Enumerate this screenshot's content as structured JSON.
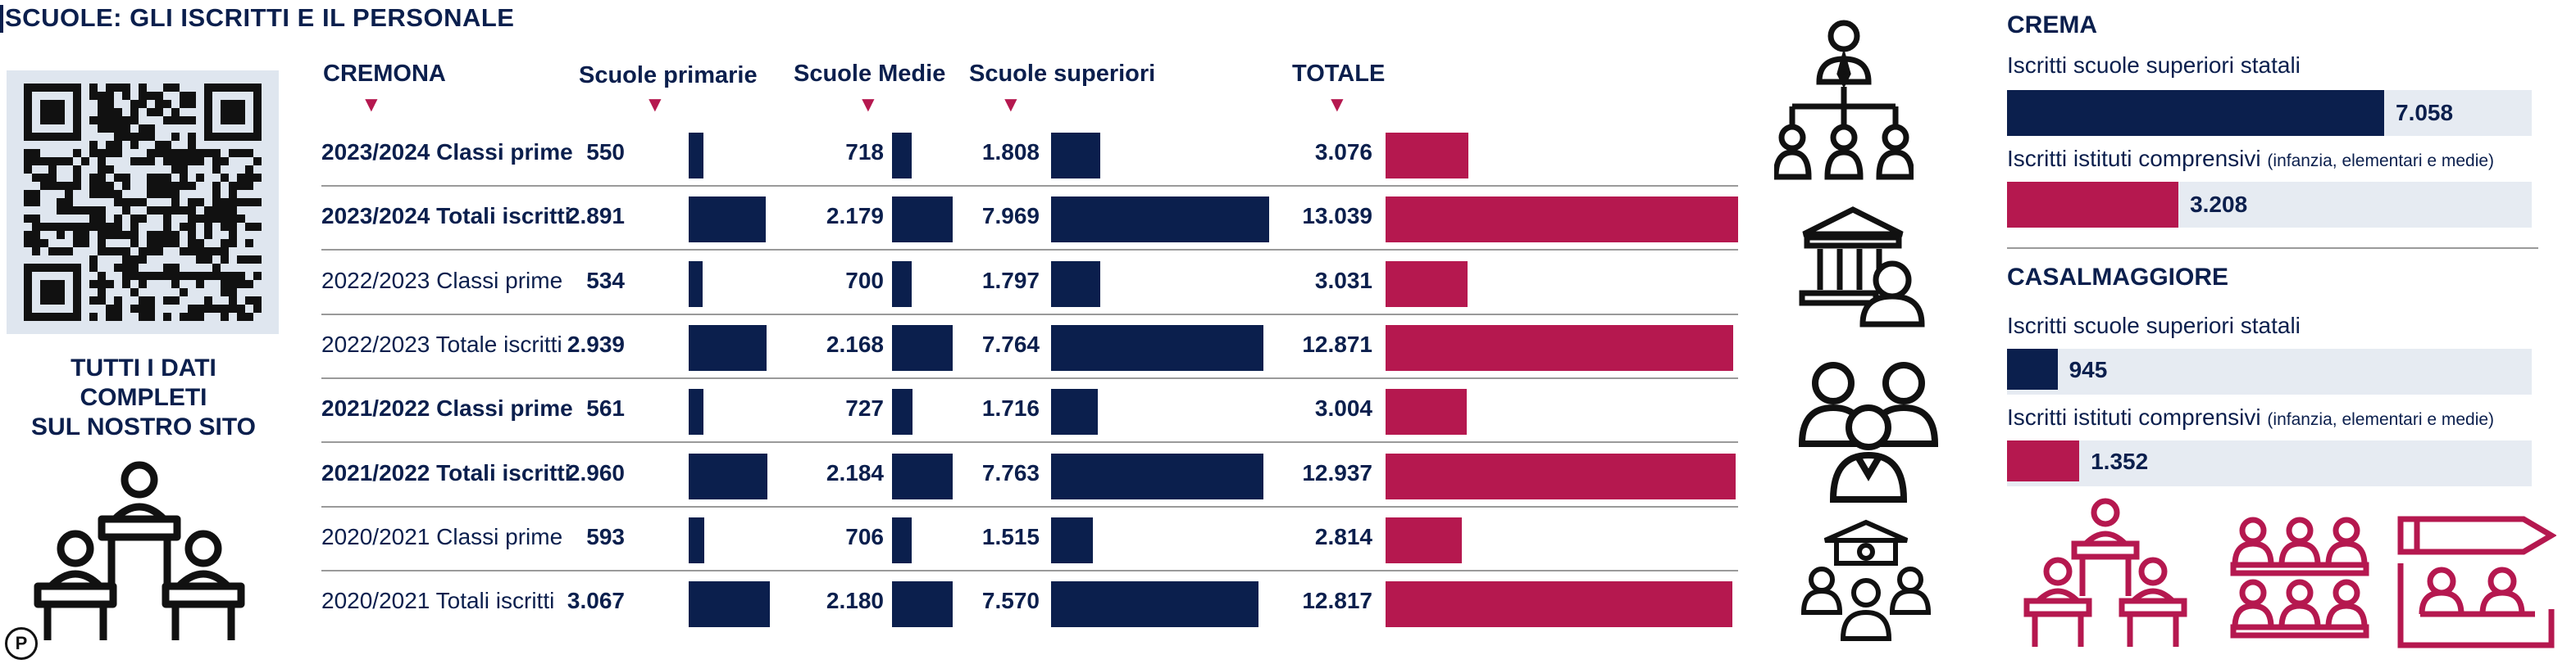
{
  "title": "SCUOLE: GLI ISCRITTI E IL PERSONALE",
  "promo": {
    "line1": "TUTTI I DATI",
    "line2": "COMPLETI",
    "line3": "SUL NOSTRO SITO"
  },
  "badge": "P",
  "colors": {
    "navy": "#0b1f4d",
    "crimson": "#b5184f",
    "panel_bg": "#e6ebf2"
  },
  "icons": [
    "qr-code-icon",
    "students-at-desks-icon",
    "org-chart-icon",
    "institution-person-icon",
    "people-group-icon",
    "staff-team-icon",
    "teacher-class-icon",
    "students-rows-icon",
    "pencil-students-icon"
  ],
  "chart_data": [
    {
      "type": "bar",
      "title": "CREMONA",
      "columns": [
        "Scuole primarie",
        "Scuole Medie",
        "Scuole superiori",
        "TOTALE"
      ],
      "rows": [
        {
          "label": "2023/2024 Classi prime",
          "bold": true,
          "values": [
            550,
            718,
            1808,
            3076
          ],
          "display": [
            "550",
            "718",
            "1.808",
            "3.076"
          ]
        },
        {
          "label": "2023/2024 Totali iscritti",
          "bold": true,
          "values": [
            2891,
            2179,
            7969,
            13039
          ],
          "display": [
            "2.891",
            "2.179",
            "7.969",
            "13.039"
          ]
        },
        {
          "label": "2022/2023 Classi prime",
          "bold": false,
          "values": [
            534,
            700,
            1797,
            3031
          ],
          "display": [
            "534",
            "700",
            "1.797",
            "3.031"
          ]
        },
        {
          "label": "2022/2023 Totale iscritti",
          "bold": false,
          "values": [
            2939,
            2168,
            7764,
            12871
          ],
          "display": [
            "2.939",
            "2.168",
            "7.764",
            "12.871"
          ]
        },
        {
          "label": "2021/2022 Classi prime",
          "bold": true,
          "values": [
            561,
            727,
            1716,
            3004
          ],
          "display": [
            "561",
            "727",
            "1.716",
            "3.004"
          ]
        },
        {
          "label": "2021/2022 Totali iscritti",
          "bold": true,
          "values": [
            2960,
            2184,
            7763,
            12937
          ],
          "display": [
            "2.960",
            "2.184",
            "7.763",
            "12.937"
          ]
        },
        {
          "label": "2020/2021 Classi prime",
          "bold": false,
          "values": [
            593,
            706,
            1515,
            2814
          ],
          "display": [
            "593",
            "706",
            "1.515",
            "2.814"
          ]
        },
        {
          "label": "2020/2021 Totali iscritti",
          "bold": false,
          "values": [
            3067,
            2180,
            7570,
            12817
          ],
          "display": [
            "3.067",
            "2.180",
            "7.570",
            "12.817"
          ]
        }
      ]
    },
    {
      "type": "bar",
      "title": "CREMA",
      "items": [
        {
          "label": "Iscritti scuole superiori statali",
          "note": "",
          "value": 7058,
          "display": "7.058",
          "color": "#0b1f4d"
        },
        {
          "label": "Iscritti istituti comprensivi",
          "note": "(infanzia, elementari e medie)",
          "value": 3208,
          "display": "3.208",
          "color": "#b5184f"
        }
      ]
    },
    {
      "type": "bar",
      "title": "CASALMAGGIORE",
      "items": [
        {
          "label": "Iscritti scuole superiori statali",
          "note": "",
          "value": 945,
          "display": "945",
          "color": "#0b1f4d"
        },
        {
          "label": "Iscritti istituti comprensivi",
          "note": "(infanzia, elementari e medie)",
          "value": 1352,
          "display": "1.352",
          "color": "#b5184f"
        }
      ]
    }
  ]
}
